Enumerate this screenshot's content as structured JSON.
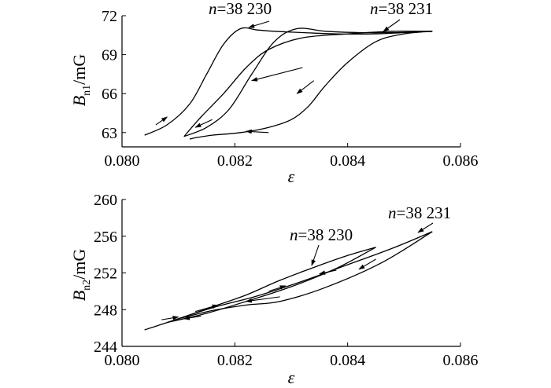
{
  "chart_data": [
    {
      "type": "line",
      "xlabel": "ε",
      "ylabel": {
        "base": "B",
        "sub": "n1",
        "unit": "/mG"
      },
      "xlim": [
        0.08,
        0.086
      ],
      "ylim": [
        61.9,
        72.0
      ],
      "xticks": [
        0.08,
        0.082,
        0.084,
        0.086
      ],
      "xtick_labels": [
        "0.080",
        "0.082",
        "0.084",
        "0.086"
      ],
      "yticks": [
        63,
        66,
        69,
        72
      ],
      "ytick_labels": [
        "63",
        "66",
        "69",
        "72"
      ],
      "annotations": [
        {
          "label": {
            "italic": "n",
            "rest": "=38 230"
          }
        },
        {
          "label": {
            "italic": "n",
            "rest": "=38 231"
          }
        }
      ],
      "series": [
        {
          "x": [
            0.0804,
            0.0808,
            0.0812,
            0.0815,
            0.0818,
            0.0821,
            0.0824,
            0.0827,
            0.0832,
            0.0838,
            0.0845,
            0.085,
            0.0855
          ],
          "y": [
            62.8,
            63.6,
            65.2,
            67.5,
            69.8,
            71.0,
            70.9,
            70.8,
            70.7,
            70.6,
            70.6,
            70.7,
            70.8
          ]
        },
        {
          "x": [
            0.0855,
            0.0848,
            0.084,
            0.0832,
            0.0826,
            0.0822,
            0.0818,
            0.0814,
            0.0811
          ],
          "y": [
            70.8,
            70.8,
            70.6,
            70.3,
            69.4,
            68.0,
            66.0,
            64.2,
            62.7
          ]
        },
        {
          "x": [
            0.0811,
            0.0815,
            0.0819,
            0.0823,
            0.0827,
            0.0831,
            0.0836,
            0.0842,
            0.0848,
            0.0855
          ],
          "y": [
            62.7,
            63.4,
            64.8,
            67.5,
            70.0,
            71.0,
            70.8,
            70.7,
            70.7,
            70.8
          ]
        },
        {
          "x": [
            0.0855,
            0.085,
            0.0845,
            0.084,
            0.0836,
            0.0833,
            0.083,
            0.0826,
            0.0821,
            0.0816,
            0.0813,
            0.0812
          ],
          "y": [
            70.8,
            70.6,
            70.0,
            68.4,
            66.6,
            65.0,
            64.0,
            63.4,
            63.0,
            62.8,
            62.6,
            62.5
          ]
        }
      ],
      "arrows": [
        {
          "x": [
            0.0806,
            0.0808
          ],
          "y": [
            63.6,
            64.2
          ]
        },
        {
          "x": [
            0.0832,
            0.0823
          ],
          "y": [
            68.0,
            67.0
          ]
        },
        {
          "x": [
            0.0816,
            0.0813
          ],
          "y": [
            64.0,
            63.4
          ]
        },
        {
          "x": [
            0.0834,
            0.0831
          ],
          "y": [
            67.0,
            66.0
          ]
        },
        {
          "x": [
            0.0826,
            0.0822
          ],
          "y": [
            63.0,
            63.1
          ]
        }
      ]
    },
    {
      "type": "line",
      "xlabel": "ε",
      "ylabel": {
        "base": "B",
        "sub": "n2",
        "unit": "/mG"
      },
      "xlim": [
        0.08,
        0.086
      ],
      "ylim": [
        244.0,
        260.0
      ],
      "xticks": [
        0.08,
        0.082,
        0.084,
        0.086
      ],
      "xtick_labels": [
        "0.080",
        "0.082",
        "0.084",
        "0.086"
      ],
      "yticks": [
        244,
        248,
        252,
        256,
        260
      ],
      "ytick_labels": [
        "244",
        "248",
        "252",
        "256",
        "260"
      ],
      "annotations": [
        {
          "label": {
            "italic": "n",
            "rest": "=38 230"
          }
        },
        {
          "label": {
            "italic": "n",
            "rest": "=38 231"
          }
        }
      ],
      "series": [
        {
          "x": [
            0.0804,
            0.081,
            0.0816,
            0.0822,
            0.0828,
            0.0834,
            0.084,
            0.0845
          ],
          "y": [
            245.8,
            247.0,
            248.3,
            249.6,
            251.2,
            252.6,
            253.9,
            254.8
          ]
        },
        {
          "x": [
            0.0845,
            0.0838,
            0.083,
            0.0822,
            0.0815,
            0.0808
          ],
          "y": [
            254.8,
            252.5,
            250.5,
            248.9,
            247.6,
            246.6
          ]
        },
        {
          "x": [
            0.0808,
            0.0816,
            0.0824,
            0.0832,
            0.084,
            0.0848,
            0.0855
          ],
          "y": [
            246.6,
            248.2,
            249.5,
            251.1,
            252.9,
            254.7,
            256.5
          ]
        },
        {
          "x": [
            0.0855,
            0.0846,
            0.0836,
            0.0828,
            0.0822,
            0.0816,
            0.081
          ],
          "y": [
            256.5,
            253.1,
            250.4,
            248.9,
            248.5,
            247.9,
            247.0
          ]
        }
      ],
      "arrows": [
        {
          "x": [
            0.0807,
            0.081
          ],
          "y": [
            246.9,
            247.2
          ]
        },
        {
          "x": [
            0.0813,
            0.0817
          ],
          "y": [
            247.8,
            248.5
          ]
        },
        {
          "x": [
            0.0814,
            0.0811
          ],
          "y": [
            247.3,
            247.0
          ]
        },
        {
          "x": [
            0.0826,
            0.0829
          ],
          "y": [
            250.0,
            250.6
          ]
        },
        {
          "x": [
            0.0838,
            0.0835
          ],
          "y": [
            252.3,
            251.9
          ]
        },
        {
          "x": [
            0.0845,
            0.0842
          ],
          "y": [
            253.5,
            252.4
          ]
        },
        {
          "x": [
            0.0828,
            0.0822
          ],
          "y": [
            249.4,
            248.9
          ]
        }
      ]
    }
  ]
}
